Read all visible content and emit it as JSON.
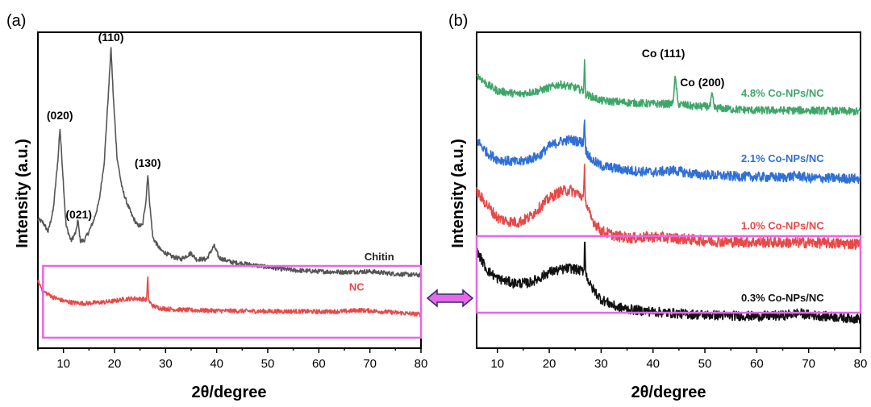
{
  "colors": {
    "chitin": "#555555",
    "nc": "#e84848",
    "s0_3": "#111111",
    "s1_0": "#e84848",
    "s2_1": "#2f6fd6",
    "s4_8": "#3fa66a",
    "highlight": "#e866e8"
  },
  "chart_data": [
    {
      "type": "line",
      "panel": "(a)",
      "xlabel": "2θ/degree",
      "ylabel": "Intensity (a.u.)",
      "xlim": [
        5,
        80
      ],
      "xticks": [
        10,
        20,
        30,
        40,
        50,
        60,
        70,
        80
      ],
      "yticks_shown": false,
      "series": [
        {
          "name": "Chitin",
          "color_key": "chitin",
          "baseline": 0.62,
          "noise": 0.012,
          "points": [
            [
              5,
              1.55
            ],
            [
              6,
              1.5
            ],
            [
              7,
              1.35
            ],
            [
              8,
              1.7
            ],
            [
              9,
              2.6
            ],
            [
              9.3,
              3.05
            ],
            [
              9.8,
              2.4
            ],
            [
              10.5,
              1.45
            ],
            [
              11.5,
              1.2
            ],
            [
              12.5,
              1.35
            ],
            [
              12.8,
              1.55
            ],
            [
              13.3,
              1.2
            ],
            [
              14,
              1.2
            ],
            [
              15,
              1.35
            ],
            [
              16,
              1.55
            ],
            [
              17,
              1.85
            ],
            [
              18,
              2.5
            ],
            [
              18.8,
              3.6
            ],
            [
              19.3,
              4.35
            ],
            [
              19.8,
              3.5
            ],
            [
              20.5,
              2.55
            ],
            [
              21.5,
              2.05
            ],
            [
              22.5,
              1.8
            ],
            [
              23.5,
              1.6
            ],
            [
              24.5,
              1.45
            ],
            [
              25.5,
              1.45
            ],
            [
              26.2,
              1.9
            ],
            [
              26.5,
              2.3
            ],
            [
              26.9,
              1.8
            ],
            [
              27.5,
              1.25
            ],
            [
              29,
              1.05
            ],
            [
              31,
              0.95
            ],
            [
              33,
              0.9
            ],
            [
              35,
              1.0
            ],
            [
              36,
              0.9
            ],
            [
              38,
              0.9
            ],
            [
              39.5,
              1.12
            ],
            [
              40.5,
              0.92
            ],
            [
              43,
              0.85
            ],
            [
              46,
              0.82
            ],
            [
              50,
              0.77
            ],
            [
              55,
              0.72
            ],
            [
              60,
              0.7
            ],
            [
              65,
              0.69
            ],
            [
              70,
              0.7
            ],
            [
              75,
              0.66
            ],
            [
              80,
              0.64
            ]
          ],
          "label_x": 70
        },
        {
          "name": "NC",
          "color_key": "nc",
          "baseline": 0.0,
          "noise": 0.012,
          "points": [
            [
              5,
              0.55
            ],
            [
              6,
              0.38
            ],
            [
              8,
              0.28
            ],
            [
              10,
              0.22
            ],
            [
              12,
              0.19
            ],
            [
              14,
              0.18
            ],
            [
              16,
              0.19
            ],
            [
              18,
              0.2
            ],
            [
              20,
              0.22
            ],
            [
              22,
              0.25
            ],
            [
              24,
              0.26
            ],
            [
              25.5,
              0.25
            ],
            [
              26.3,
              0.24
            ],
            [
              26.5,
              0.62
            ],
            [
              26.7,
              0.22
            ],
            [
              27.5,
              0.14
            ],
            [
              29,
              0.1
            ],
            [
              32,
              0.08
            ],
            [
              35,
              0.07
            ],
            [
              40,
              0.06
            ],
            [
              45,
              0.055
            ],
            [
              50,
              0.05
            ],
            [
              55,
              0.05
            ],
            [
              60,
              0.045
            ],
            [
              65,
              0.05
            ],
            [
              68,
              0.07
            ],
            [
              70,
              0.06
            ],
            [
              75,
              0.03
            ],
            [
              80,
              0.0
            ]
          ],
          "label_x": 67
        }
      ],
      "annotations": [
        {
          "text": "(020)",
          "x": 9.3
        },
        {
          "text": "(021)",
          "x": 13
        },
        {
          "text": "(110)",
          "x": 19.3
        },
        {
          "text": "(130)",
          "x": 26.5
        }
      ],
      "highlight_box": {
        "x_from": 6,
        "x_to": 80,
        "series": "NC"
      }
    },
    {
      "type": "line",
      "panel": "(b)",
      "xlabel": "2θ/degree",
      "ylabel": "Intensity (a.u.)",
      "xlim": [
        6,
        80
      ],
      "xticks": [
        10,
        20,
        30,
        40,
        50,
        60,
        70,
        80
      ],
      "yticks_shown": false,
      "series": [
        {
          "name": "4.8% Co-NPs/NC",
          "color_key": "s4_8",
          "noise": 0.02,
          "points": [
            [
              6,
              3.75
            ],
            [
              8,
              3.6
            ],
            [
              10,
              3.5
            ],
            [
              14,
              3.45
            ],
            [
              18,
              3.5
            ],
            [
              22,
              3.6
            ],
            [
              25,
              3.55
            ],
            [
              26.6,
              3.5
            ],
            [
              26.8,
              3.95
            ],
            [
              27,
              3.45
            ],
            [
              30,
              3.35
            ],
            [
              35,
              3.32
            ],
            [
              40,
              3.3
            ],
            [
              43.8,
              3.3
            ],
            [
              44.3,
              3.72
            ],
            [
              44.8,
              3.3
            ],
            [
              48,
              3.26
            ],
            [
              51,
              3.26
            ],
            [
              51.4,
              3.45
            ],
            [
              51.8,
              3.24
            ],
            [
              55,
              3.22
            ],
            [
              60,
              3.2
            ],
            [
              65,
              3.2
            ],
            [
              70,
              3.2
            ],
            [
              75,
              3.19
            ],
            [
              80,
              3.18
            ]
          ],
          "label_x": 57
        },
        {
          "name": "2.1% Co-NPs/NC",
          "color_key": "s2_1",
          "noise": 0.025,
          "points": [
            [
              6,
              2.75
            ],
            [
              8,
              2.55
            ],
            [
              10,
              2.45
            ],
            [
              14,
              2.4
            ],
            [
              18,
              2.5
            ],
            [
              20,
              2.65
            ],
            [
              22,
              2.72
            ],
            [
              24,
              2.75
            ],
            [
              26,
              2.72
            ],
            [
              26.6,
              2.7
            ],
            [
              26.8,
              3.1
            ],
            [
              27,
              2.6
            ],
            [
              28,
              2.45
            ],
            [
              30,
              2.35
            ],
            [
              35,
              2.28
            ],
            [
              40,
              2.25
            ],
            [
              44,
              2.28
            ],
            [
              48,
              2.22
            ],
            [
              55,
              2.19
            ],
            [
              60,
              2.18
            ],
            [
              65,
              2.17
            ],
            [
              68,
              2.2
            ],
            [
              70,
              2.16
            ],
            [
              75,
              2.16
            ],
            [
              80,
              2.15
            ]
          ],
          "label_x": 57
        },
        {
          "name": "1.0% Co-NPs/NC",
          "color_key": "s1_0",
          "noise": 0.028,
          "points": [
            [
              6,
              1.95
            ],
            [
              8,
              1.75
            ],
            [
              10,
              1.55
            ],
            [
              12,
              1.5
            ],
            [
              14,
              1.48
            ],
            [
              16,
              1.55
            ],
            [
              18,
              1.7
            ],
            [
              20,
              1.85
            ],
            [
              22,
              1.95
            ],
            [
              24,
              1.98
            ],
            [
              26,
              1.9
            ],
            [
              26.6,
              1.85
            ],
            [
              26.8,
              2.3
            ],
            [
              27,
              1.8
            ],
            [
              28,
              1.55
            ],
            [
              30,
              1.35
            ],
            [
              33,
              1.27
            ],
            [
              36,
              1.24
            ],
            [
              40,
              1.26
            ],
            [
              44,
              1.24
            ],
            [
              50,
              1.2
            ],
            [
              55,
              1.18
            ],
            [
              60,
              1.18
            ],
            [
              65,
              1.17
            ],
            [
              70,
              1.17
            ],
            [
              75,
              1.16
            ],
            [
              80,
              1.15
            ]
          ],
          "label_x": 57
        },
        {
          "name": "0.3% Co-NPs/NC",
          "color_key": "s0_3",
          "noise": 0.025,
          "points": [
            [
              6,
              1.05
            ],
            [
              8,
              0.75
            ],
            [
              10,
              0.62
            ],
            [
              13,
              0.55
            ],
            [
              16,
              0.55
            ],
            [
              18,
              0.62
            ],
            [
              20,
              0.72
            ],
            [
              22,
              0.75
            ],
            [
              24,
              0.78
            ],
            [
              26,
              0.74
            ],
            [
              26.7,
              0.74
            ],
            [
              26.85,
              1.38
            ],
            [
              27,
              0.7
            ],
            [
              28,
              0.5
            ],
            [
              30,
              0.3
            ],
            [
              33,
              0.18
            ],
            [
              36,
              0.14
            ],
            [
              40,
              0.11
            ],
            [
              45,
              0.08
            ],
            [
              50,
              0.06
            ],
            [
              55,
              0.05
            ],
            [
              60,
              0.04
            ],
            [
              65,
              0.05
            ],
            [
              68,
              0.09
            ],
            [
              70,
              0.06
            ],
            [
              75,
              0.03
            ],
            [
              80,
              0.0
            ]
          ],
          "label_x": 57
        }
      ],
      "annotations": [
        {
          "text": "Co (111)",
          "x": 42
        },
        {
          "text": "Co (200)",
          "x": 49.5
        }
      ],
      "highlight_box": {
        "x_from": 6,
        "x_to": 80,
        "series": "0.3% Co-NPs/NC"
      }
    }
  ]
}
